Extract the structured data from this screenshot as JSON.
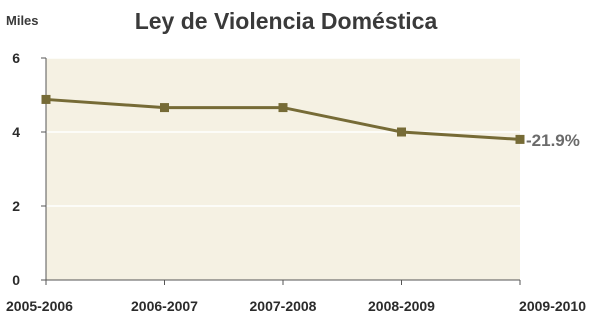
{
  "chart_data": {
    "type": "line",
    "title": "Ley de Violencia Doméstica",
    "unit_label": "Miles",
    "categories": [
      "2005-2006",
      "2006-2007",
      "2007-2008",
      "2008-2009",
      "2009-2010"
    ],
    "series": [
      {
        "values": [
          4.88,
          4.66,
          4.66,
          4.0,
          3.8
        ]
      }
    ],
    "yticks": [
      0,
      2,
      4,
      6
    ],
    "ylim": [
      0,
      6
    ],
    "grid": true,
    "annotation": "-21.9%",
    "colors": {
      "line": "#766b36",
      "plot_bg": "#f5f1e3",
      "grid": "#ffffff"
    }
  }
}
